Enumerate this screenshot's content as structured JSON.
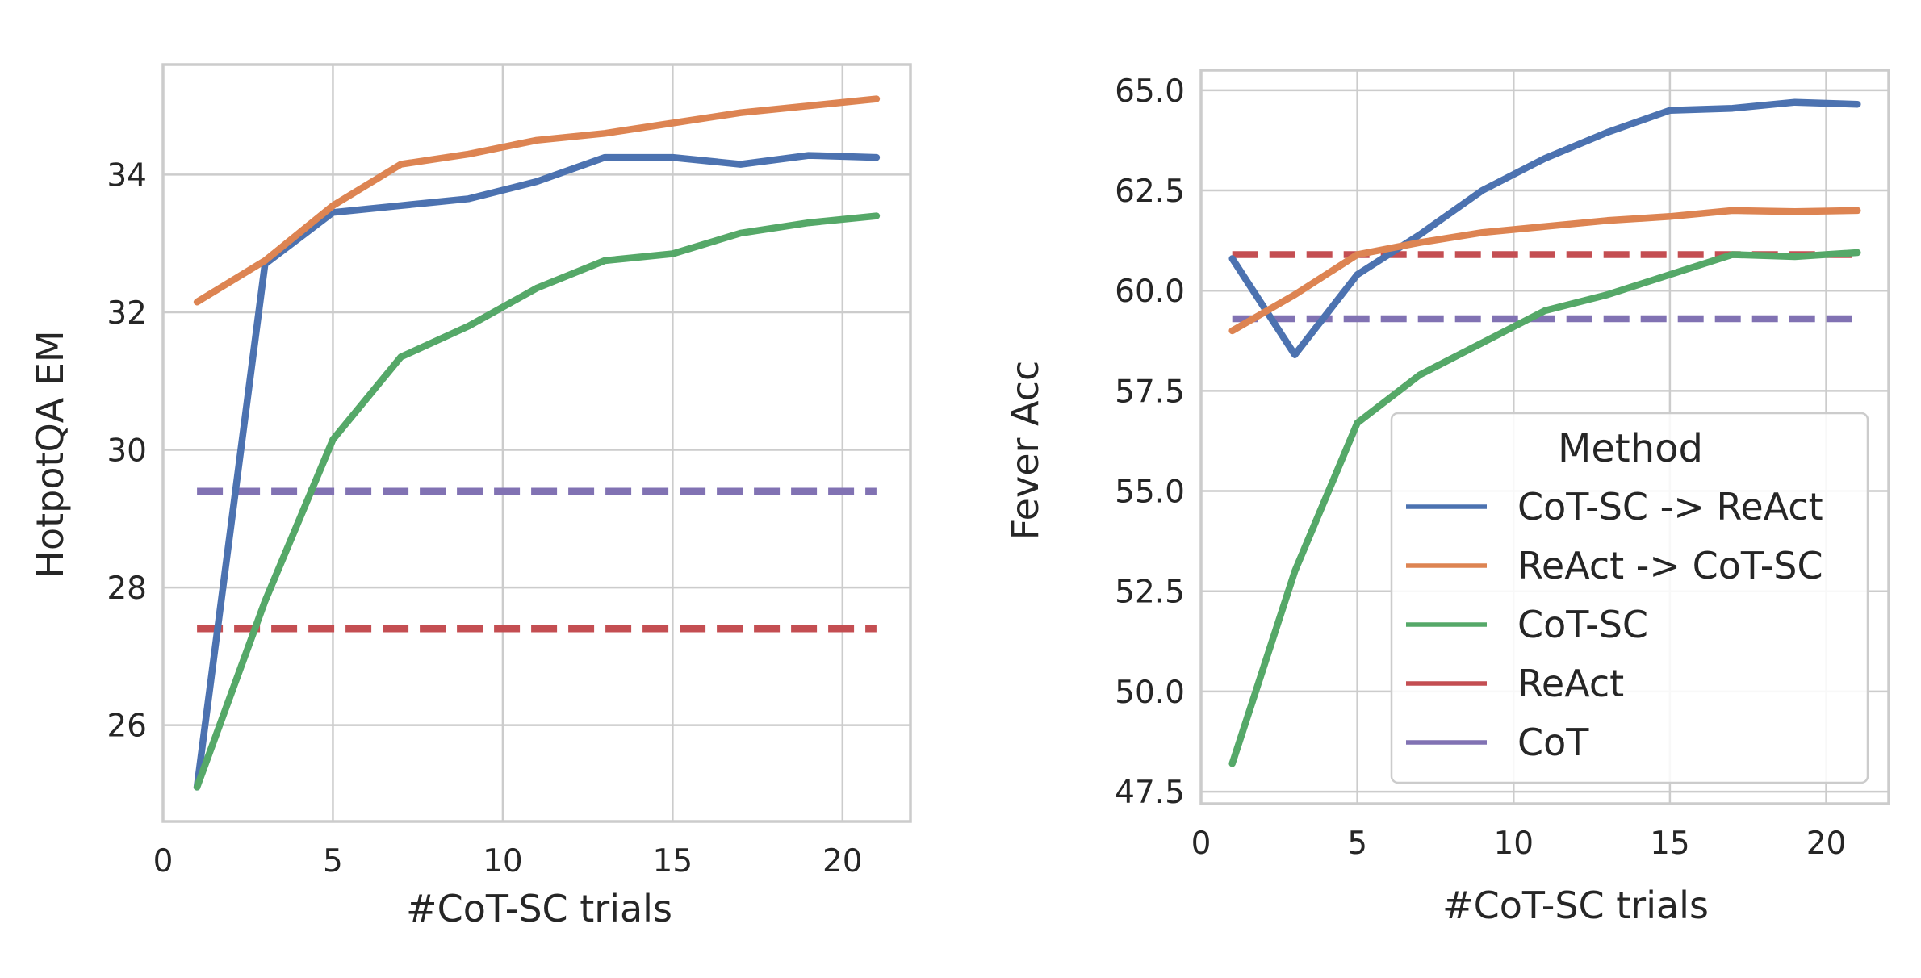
{
  "colors": {
    "CoT-SC -> ReAct": "#4c72b0",
    "ReAct -> CoT-SC": "#dd8452",
    "CoT-SC": "#55a868",
    "ReAct": "#c44e52",
    "CoT": "#8172b3",
    "grid": "#cccccc",
    "axes": "#cccccc"
  },
  "chart_data": [
    {
      "type": "line",
      "title": "",
      "xlabel": "#CoT-SC trials",
      "ylabel": "HotpotQA EM",
      "xlim": [
        0,
        22
      ],
      "ylim": [
        24.6,
        35.6
      ],
      "xticks": [
        0,
        5,
        10,
        15,
        20
      ],
      "yticks": [
        26,
        28,
        30,
        32,
        34
      ],
      "grid": true,
      "legend": null,
      "series": [
        {
          "name": "CoT-SC -> ReAct",
          "style": "solid",
          "x": [
            1,
            3,
            5,
            7,
            9,
            11,
            13,
            15,
            17,
            19,
            21
          ],
          "y": [
            25.1,
            32.7,
            33.45,
            33.55,
            33.65,
            33.9,
            34.25,
            34.25,
            34.15,
            34.28,
            34.25
          ]
        },
        {
          "name": "ReAct -> CoT-SC",
          "style": "solid",
          "x": [
            1,
            3,
            5,
            7,
            9,
            11,
            13,
            15,
            17,
            19,
            21
          ],
          "y": [
            32.15,
            32.75,
            33.55,
            34.15,
            34.3,
            34.5,
            34.6,
            34.75,
            34.9,
            35.0,
            35.1
          ]
        },
        {
          "name": "CoT-SC",
          "style": "solid",
          "x": [
            1,
            3,
            5,
            7,
            9,
            11,
            13,
            15,
            17,
            19,
            21
          ],
          "y": [
            25.1,
            27.8,
            30.15,
            31.35,
            31.8,
            32.35,
            32.75,
            32.85,
            33.15,
            33.3,
            33.4
          ]
        },
        {
          "name": "ReAct",
          "style": "dashed",
          "x": [
            1,
            21
          ],
          "y": [
            27.4,
            27.4
          ]
        },
        {
          "name": "CoT",
          "style": "dashed",
          "x": [
            1,
            21
          ],
          "y": [
            29.4,
            29.4
          ]
        }
      ]
    },
    {
      "type": "line",
      "title": "",
      "xlabel": "#CoT-SC trials",
      "ylabel": "Fever Acc",
      "xlim": [
        0,
        22
      ],
      "ylim": [
        47.2,
        65.5
      ],
      "xticks": [
        0,
        5,
        10,
        15,
        20
      ],
      "yticks": [
        47.5,
        50.0,
        52.5,
        55.0,
        57.5,
        60.0,
        62.5,
        65.0
      ],
      "grid": true,
      "legend": {
        "title": "Method",
        "placement": "lower-right",
        "entries": [
          "CoT-SC -> ReAct",
          "ReAct -> CoT-SC",
          "CoT-SC",
          "ReAct",
          "CoT"
        ]
      },
      "series": [
        {
          "name": "CoT-SC -> ReAct",
          "style": "solid",
          "x": [
            1,
            3,
            5,
            7,
            9,
            11,
            13,
            15,
            17,
            19,
            21
          ],
          "y": [
            60.8,
            58.4,
            60.4,
            61.4,
            62.5,
            63.3,
            63.95,
            64.5,
            64.55,
            64.7,
            64.65
          ]
        },
        {
          "name": "ReAct -> CoT-SC",
          "style": "solid",
          "x": [
            1,
            3,
            5,
            7,
            9,
            11,
            13,
            15,
            17,
            19,
            21
          ],
          "y": [
            59.0,
            59.9,
            60.9,
            61.2,
            61.45,
            61.6,
            61.75,
            61.85,
            62.0,
            61.97,
            62.0
          ]
        },
        {
          "name": "CoT-SC",
          "style": "solid",
          "x": [
            1,
            3,
            5,
            7,
            9,
            11,
            13,
            15,
            17,
            19,
            21
          ],
          "y": [
            48.2,
            53.0,
            56.7,
            57.9,
            58.7,
            59.5,
            59.9,
            60.4,
            60.9,
            60.85,
            60.95
          ]
        },
        {
          "name": "ReAct",
          "style": "dashed",
          "x": [
            1,
            21
          ],
          "y": [
            60.9,
            60.9
          ]
        },
        {
          "name": "CoT",
          "style": "dashed",
          "x": [
            1,
            21
          ],
          "y": [
            59.3,
            59.3
          ]
        }
      ]
    }
  ]
}
